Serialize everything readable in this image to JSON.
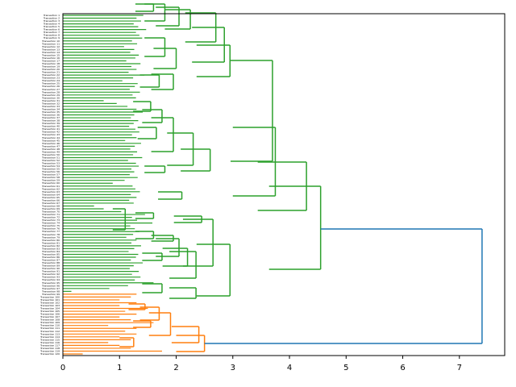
{
  "chart_data": {
    "type": "dendrogram",
    "orientation": "horizontal",
    "title": "",
    "xlabel": "",
    "ylabel": "",
    "xlim": [
      0,
      7.8
    ],
    "xticks": [
      "0",
      "1",
      "2",
      "3",
      "4",
      "5",
      "6",
      "7"
    ],
    "leaf_count": 120,
    "leaf_label_prefix": "Transaction ",
    "colors": {
      "cluster_green": "#2ca02c",
      "cluster_orange": "#ff7f0e",
      "link_blue": "#1f77b4",
      "axis": "#000000"
    },
    "clusters": [
      {
        "name": "green",
        "color": "#2ca02c",
        "leaf_range": [
          0,
          98
        ],
        "leaf_heights": [
          1.42,
          1.3,
          1.38,
          1.25,
          1.33,
          1.47,
          1.29,
          1.35,
          1.4,
          1.22,
          1.31,
          1.08,
          1.26,
          1.19,
          1.34,
          1.28,
          1.12,
          1.37,
          1.21,
          1.3,
          1.16,
          1.44,
          1.24,
          1.05,
          1.32,
          1.27,
          1.18,
          1.36,
          1.23,
          1.29,
          0.72,
          0.95,
          1.14,
          1.3,
          1.41,
          1.26,
          1.2,
          1.33,
          1.25,
          1.17,
          1.28,
          1.35,
          1.22,
          1.3,
          1.1,
          1.38,
          1.27,
          1.19,
          1.31,
          1.24,
          1.4,
          1.15,
          1.29,
          1.34,
          1.21,
          1.26,
          1.18,
          1.32,
          1.09,
          0.88,
          1.23,
          1.28,
          1.36,
          1.2,
          1.3,
          1.17,
          1.25,
          0.55,
          0.72,
          1.03,
          1.45,
          1.22,
          1.31,
          1.58,
          1.19,
          1.27,
          1.35,
          1.24,
          1.12,
          1.3,
          1.21,
          1.38,
          1.26,
          1.16,
          1.33,
          1.29,
          1.2,
          1.41,
          1.25,
          1.18,
          1.34,
          1.22,
          1.37,
          1.27,
          1.6,
          1.15,
          0.82,
          0.15
        ],
        "merges": [
          {
            "x": 1.6,
            "y1": 5,
            "y2": 14
          },
          {
            "x": 1.8,
            "y1": 5,
            "y2": 26
          },
          {
            "x": 2.05,
            "y1": 9,
            "y2": 32
          },
          {
            "x": 2.25,
            "y1": 12,
            "y2": 36
          },
          {
            "x": 2.7,
            "y1": 16,
            "y2": 52
          },
          {
            "x": 1.8,
            "y1": 47,
            "y2": 70
          },
          {
            "x": 2.0,
            "y1": 60,
            "y2": 85
          },
          {
            "x": 2.85,
            "y1": 34,
            "y2": 77
          },
          {
            "x": 1.7,
            "y1": 93,
            "y2": 108
          },
          {
            "x": 1.95,
            "y1": 92,
            "y2": 111
          },
          {
            "x": 2.95,
            "y1": 56,
            "y2": 95
          },
          {
            "x": 1.55,
            "y1": 126,
            "y2": 138
          },
          {
            "x": 1.75,
            "y1": 136,
            "y2": 152
          },
          {
            "x": 1.65,
            "y1": 158,
            "y2": 172
          },
          {
            "x": 1.95,
            "y1": 146,
            "y2": 188
          },
          {
            "x": 2.3,
            "y1": 165,
            "y2": 205
          },
          {
            "x": 1.8,
            "y1": 206,
            "y2": 214
          },
          {
            "x": 2.6,
            "y1": 185,
            "y2": 212
          },
          {
            "x": 3.7,
            "y1": 75,
            "y2": 200
          },
          {
            "x": 2.1,
            "y1": 238,
            "y2": 247
          },
          {
            "x": 3.75,
            "y1": 158,
            "y2": 243
          },
          {
            "x": 1.1,
            "y1": 259,
            "y2": 285
          },
          {
            "x": 1.6,
            "y1": 264,
            "y2": 271
          },
          {
            "x": 2.45,
            "y1": 268,
            "y2": 276
          },
          {
            "x": 1.6,
            "y1": 287,
            "y2": 296
          },
          {
            "x": 1.95,
            "y1": 292,
            "y2": 299
          },
          {
            "x": 2.05,
            "y1": 296,
            "y2": 318
          },
          {
            "x": 1.75,
            "y1": 314,
            "y2": 323
          },
          {
            "x": 2.2,
            "y1": 308,
            "y2": 330
          },
          {
            "x": 2.35,
            "y1": 312,
            "y2": 345
          },
          {
            "x": 2.65,
            "y1": 272,
            "y2": 330
          },
          {
            "x": 1.75,
            "y1": 352,
            "y2": 363
          },
          {
            "x": 2.35,
            "y1": 357,
            "y2": 370
          },
          {
            "x": 2.95,
            "y1": 303,
            "y2": 367
          },
          {
            "x": 4.3,
            "y1": 201,
            "y2": 261
          },
          {
            "x": 4.55,
            "y1": 231,
            "y2": 334
          }
        ]
      },
      {
        "name": "orange",
        "color": "#ff7f0e",
        "leaf_range": [
          98,
          120
        ],
        "leaf_heights": [
          1.3,
          1.2,
          1.0,
          1.3,
          1.0,
          1.5,
          1.1,
          1.3,
          1.0,
          1.2,
          1.6,
          0.8,
          1.3,
          1.1,
          1.3,
          1.0,
          1.2,
          0.8,
          1.0,
          1.2,
          1.75,
          0.35
        ],
        "merges": [
          {
            "x": 1.45,
            "y1": 377,
            "y2": 384
          },
          {
            "x": 1.7,
            "y1": 381,
            "y2": 397
          },
          {
            "x": 1.9,
            "y1": 388,
            "y2": 416
          },
          {
            "x": 1.55,
            "y1": 398,
            "y2": 406
          },
          {
            "x": 1.25,
            "y1": 419,
            "y2": 430
          },
          {
            "x": 2.4,
            "y1": 405,
            "y2": 425
          },
          {
            "x": 2.5,
            "y1": 416,
            "y2": 436
          }
        ]
      }
    ],
    "root_link": {
      "x": 7.4,
      "y1": 284,
      "y2": 426,
      "color": "#1f77b4"
    }
  }
}
